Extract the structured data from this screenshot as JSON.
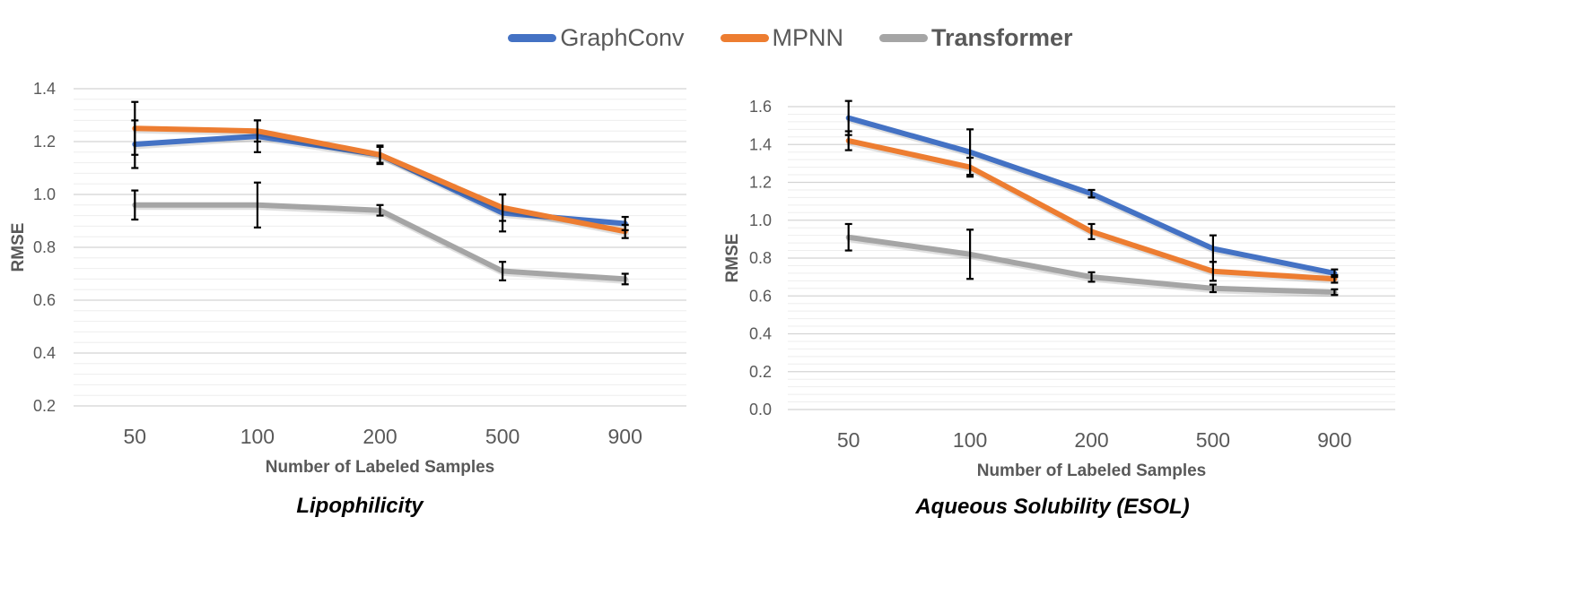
{
  "legend": [
    {
      "name": "GraphConv",
      "color": "#4472C4"
    },
    {
      "name": "MPNN",
      "color": "#ED7D31"
    },
    {
      "name": "Transformer",
      "color": "#A5A5A5"
    }
  ],
  "chart_data": [
    {
      "type": "line",
      "title": "Lipophilicity",
      "xlabel": "Number of Labeled Samples",
      "ylabel": "RMSE",
      "categories": [
        "50",
        "100",
        "200",
        "500",
        "900"
      ],
      "ylim": [
        0.2,
        1.4
      ],
      "yticks": [
        "0.2",
        "0.4",
        "0.6",
        "0.8",
        "1.0",
        "1.2",
        "1.4"
      ],
      "grid": true,
      "legend_position": "top",
      "series": [
        {
          "name": "GraphConv",
          "color": "#4472C4",
          "values": [
            1.19,
            1.22,
            1.15,
            0.93,
            0.89
          ],
          "err": [
            0.09,
            0.06,
            0.03,
            0.07,
            0.025
          ]
        },
        {
          "name": "MPNN",
          "color": "#ED7D31",
          "values": [
            1.25,
            1.24,
            1.15,
            0.95,
            0.86
          ],
          "err": [
            0.1,
            0.04,
            0.035,
            0.05,
            0.025
          ]
        },
        {
          "name": "Transformer",
          "color": "#A5A5A5",
          "values": [
            0.96,
            0.96,
            0.94,
            0.71,
            0.68
          ],
          "err": [
            0.055,
            0.085,
            0.02,
            0.035,
            0.02
          ]
        }
      ]
    },
    {
      "type": "line",
      "title": "Aqueous Solubility (ESOL)",
      "xlabel": "Number of Labeled Samples",
      "ylabel": "RMSE",
      "categories": [
        "50",
        "100",
        "200",
        "500",
        "900"
      ],
      "ylim": [
        0.0,
        1.6
      ],
      "yticks": [
        "0.0",
        "0.2",
        "0.4",
        "0.6",
        "0.8",
        "1.0",
        "1.2",
        "1.4",
        "1.6"
      ],
      "grid": true,
      "legend_position": "top",
      "series": [
        {
          "name": "GraphConv",
          "color": "#4472C4",
          "values": [
            1.54,
            1.36,
            1.14,
            0.85,
            0.72
          ],
          "err": [
            0.09,
            0.12,
            0.02,
            0.07,
            0.02
          ]
        },
        {
          "name": "MPNN",
          "color": "#ED7D31",
          "values": [
            1.42,
            1.28,
            0.94,
            0.73,
            0.69
          ],
          "err": [
            0.05,
            0.05,
            0.04,
            0.05,
            0.02
          ]
        },
        {
          "name": "Transformer",
          "color": "#A5A5A5",
          "values": [
            0.91,
            0.82,
            0.7,
            0.64,
            0.62
          ],
          "err": [
            0.07,
            0.13,
            0.025,
            0.02,
            0.015
          ]
        }
      ]
    }
  ]
}
